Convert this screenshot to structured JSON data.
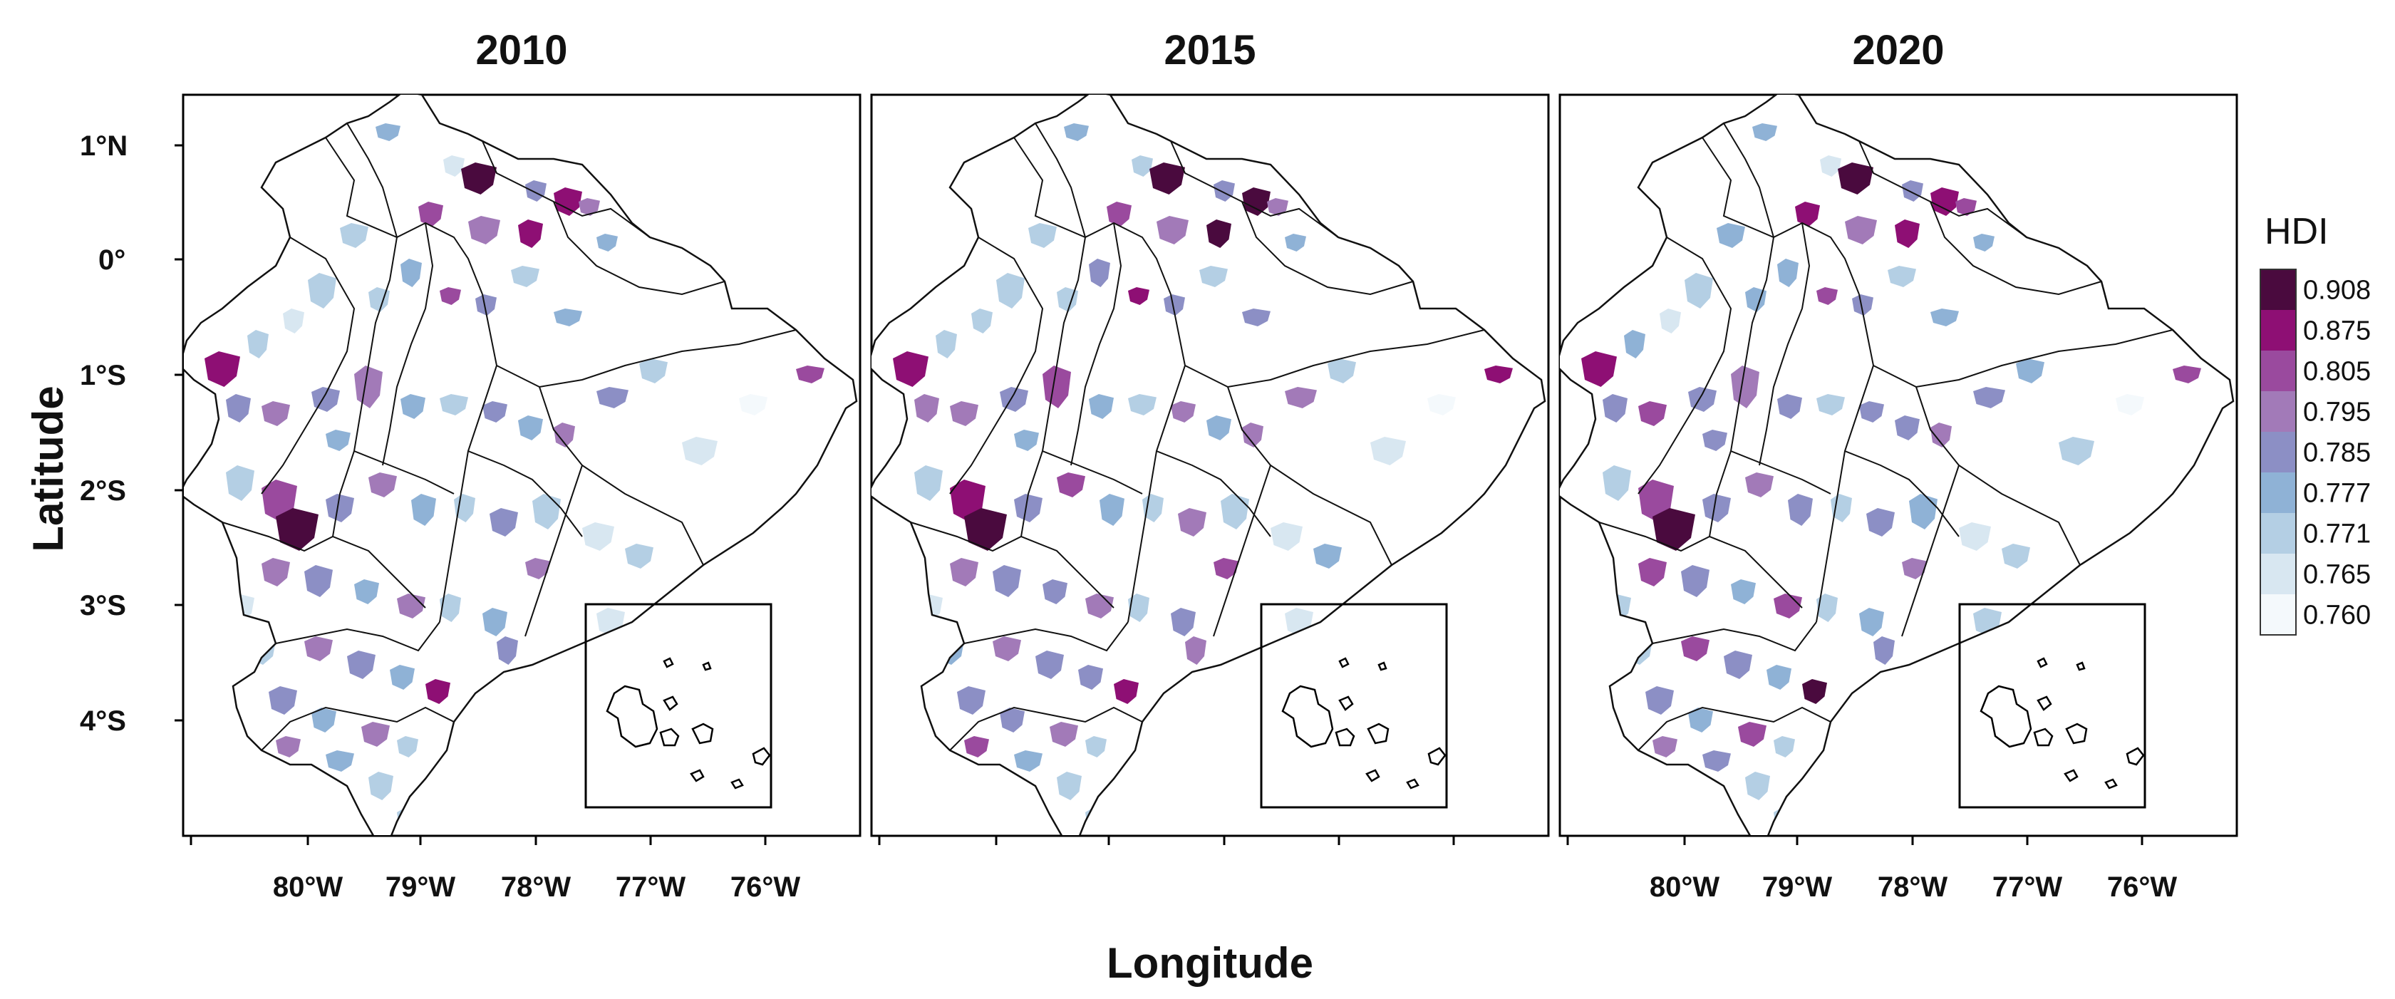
{
  "figure": {
    "panels": [
      {
        "title": "2010"
      },
      {
        "title": "2015"
      },
      {
        "title": "2020"
      }
    ],
    "axes": {
      "ylabel": "Latitude",
      "xlabel": "Longitude",
      "lat_ticks": [
        "1°N",
        "0°",
        "1°S",
        "2°S",
        "3°S",
        "4°S"
      ],
      "lon_ticks": [
        "80°W",
        "79°W",
        "78°W",
        "77°W",
        "76°W"
      ]
    },
    "legend": {
      "title": "HDI",
      "bins": [
        {
          "label": "0.908",
          "color": "#4a0a3e"
        },
        {
          "label": "0.875",
          "color": "#8e0f74"
        },
        {
          "label": "0.805",
          "color": "#9a4a9e"
        },
        {
          "label": "0.795",
          "color": "#a27ab8"
        },
        {
          "label": "0.785",
          "color": "#8c8fc5"
        },
        {
          "label": "0.777",
          "color": "#8fb2d6"
        },
        {
          "label": "0.771",
          "color": "#b4cfe4"
        },
        {
          "label": "0.765",
          "color": "#d8e7f1"
        },
        {
          "label": "0.760",
          "color": "#f4f9fc"
        }
      ]
    }
  }
}
